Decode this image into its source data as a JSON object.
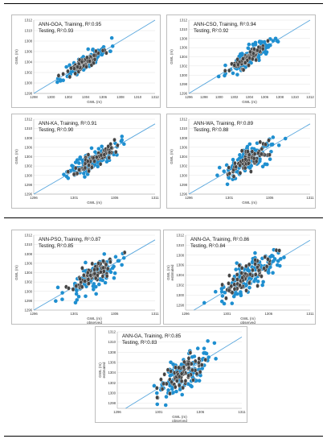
{
  "colors": {
    "training": "#1f8fd0",
    "testing": "#444444",
    "fitline": "#5aa7dd",
    "grid": "#dcdcdc"
  },
  "chart_data": [
    {
      "type": "scatter",
      "line1": "ANN-GOA, Training, R²:0.95",
      "line2": "Testing, R²:0.93",
      "xlabel": "GWL (m)",
      "ylabel": "GWL (m)",
      "xlabel2": "",
      "xticks": [
        "1298",
        "1300",
        "1302",
        "1304",
        "1306",
        "1308",
        "1310",
        "1312"
      ],
      "xlim": [
        1298,
        1312
      ],
      "yticks": [
        "1298",
        "1300",
        "1302",
        "1304",
        "1306",
        "1308",
        "1310",
        "1312"
      ],
      "ylim": [
        1298,
        1312
      ],
      "cx": 1304.0,
      "sd": 1.3,
      "noise_train": 0.8,
      "noise_test": 0.6,
      "seed": 11,
      "series": [
        {
          "name": "Training",
          "n": 120
        },
        {
          "name": "Testing",
          "n": 70
        }
      ]
    },
    {
      "type": "scatter",
      "line1": "ANN-CSO, Training, R²:0.94",
      "line2": "Testing, R²:0.92",
      "xlabel": "GWL (m)",
      "ylabel": "GWL (m)",
      "xlabel2": "",
      "xticks": [
        "1296",
        "1298",
        "1300",
        "1302",
        "1304",
        "1306",
        "1308",
        "1310",
        "1312"
      ],
      "xlim": [
        1296,
        1312
      ],
      "yticks": [
        "1296",
        "1298",
        "1300",
        "1302",
        "1304",
        "1306",
        "1308",
        "1310",
        "1312"
      ],
      "ylim": [
        1296,
        1312
      ],
      "cx": 1304.0,
      "sd": 1.5,
      "noise_train": 0.9,
      "noise_test": 0.7,
      "seed": 23,
      "series": [
        {
          "name": "Training",
          "n": 120
        },
        {
          "name": "Testing",
          "n": 70
        }
      ]
    },
    {
      "type": "scatter",
      "line1": "ANN-KA, Training, R²:0.91",
      "line2": "Testing, R²:0.90",
      "xlabel": "GWL (m)",
      "ylabel": "GWL (m)",
      "xlabel2": "",
      "xticks": [
        "1296",
        "1301",
        "1306",
        "1311"
      ],
      "xlim": [
        1296,
        1311
      ],
      "yticks": [
        "1296",
        "1298",
        "1300",
        "1302",
        "1304",
        "1306",
        "1308",
        "1310",
        "1312"
      ],
      "ylim": [
        1296,
        1312
      ],
      "cx": 1303.5,
      "sd": 1.6,
      "noise_train": 1.1,
      "noise_test": 0.9,
      "seed": 37,
      "series": [
        {
          "name": "Training",
          "n": 120
        },
        {
          "name": "Testing",
          "n": 70
        }
      ]
    },
    {
      "type": "scatter",
      "line1": "ANN-WA, Training, R²:0.89",
      "line2": "Testing, R²:0.88",
      "xlabel": "GWL (m)",
      "ylabel": "GWL (m)",
      "xlabel2": "",
      "xticks": [
        "1296",
        "1301",
        "1306",
        "1311"
      ],
      "xlim": [
        1296,
        1311
      ],
      "yticks": [
        "1296",
        "1298",
        "1300",
        "1302",
        "1304",
        "1306",
        "1308",
        "1310",
        "1312"
      ],
      "ylim": [
        1296,
        1312
      ],
      "cx": 1303.5,
      "sd": 1.7,
      "noise_train": 1.3,
      "noise_test": 1.0,
      "seed": 41,
      "series": [
        {
          "name": "Training",
          "n": 120
        },
        {
          "name": "Testing",
          "n": 70
        }
      ]
    },
    {
      "type": "scatter",
      "line1": "ANN-PSO, Training, R²:0.87",
      "line2": "Testing, R²:0.85",
      "xlabel": "GWL (m)",
      "ylabel": "GWL (m)",
      "xlabel2": "observed",
      "xticks": [
        "1296",
        "1301",
        "1306",
        "1311"
      ],
      "xlim": [
        1296,
        1311
      ],
      "yticks": [
        "1296",
        "1298",
        "1300",
        "1302",
        "1304",
        "1306",
        "1308",
        "1310",
        "1312"
      ],
      "ylim": [
        1296,
        1312
      ],
      "cx": 1303.5,
      "sd": 1.8,
      "noise_train": 1.5,
      "noise_test": 1.2,
      "seed": 53,
      "series": [
        {
          "name": "Training",
          "n": 120
        },
        {
          "name": "Testing",
          "n": 70
        }
      ]
    },
    {
      "type": "scatter",
      "line1": "ANN-GA, Training, R²:0.86",
      "line2": "Testing, R²:0.84",
      "xlabel": "GWL (m)",
      "ylabel": "GWL (m)",
      "ylabel2": "estimated",
      "xlabel2": "observed",
      "xticks": [
        "1296",
        "1301",
        "1306",
        "1311"
      ],
      "xlim": [
        1296,
        1311
      ],
      "yticks": [
        "1298",
        "1300",
        "1302",
        "1304",
        "1306",
        "1308",
        "1310",
        "1312"
      ],
      "ylim": [
        1297,
        1312
      ],
      "cx": 1303.5,
      "sd": 1.8,
      "noise_train": 1.6,
      "noise_test": 1.3,
      "seed": 67,
      "series": [
        {
          "name": "Training",
          "n": 120
        },
        {
          "name": "Testing",
          "n": 70
        }
      ]
    },
    {
      "type": "scatter",
      "line1": "ANN-GA, Training, R²:0.85",
      "line2": "Testing, R²:0.83",
      "xlabel": "GWL (m)",
      "ylabel": "GWL (m)",
      "ylabel2": "estimated",
      "xlabel2": "observed",
      "xticks": [
        "1296",
        "1301",
        "1306",
        "1311"
      ],
      "xlim": [
        1296,
        1311
      ],
      "yticks": [
        "1298",
        "1300",
        "1302",
        "1304",
        "1306",
        "1308",
        "1310",
        "1312"
      ],
      "ylim": [
        1297,
        1312
      ],
      "cx": 1304.0,
      "sd": 1.8,
      "noise_train": 1.7,
      "noise_test": 1.4,
      "seed": 79,
      "series": [
        {
          "name": "Training",
          "n": 120
        },
        {
          "name": "Testing",
          "n": 70
        }
      ]
    }
  ]
}
